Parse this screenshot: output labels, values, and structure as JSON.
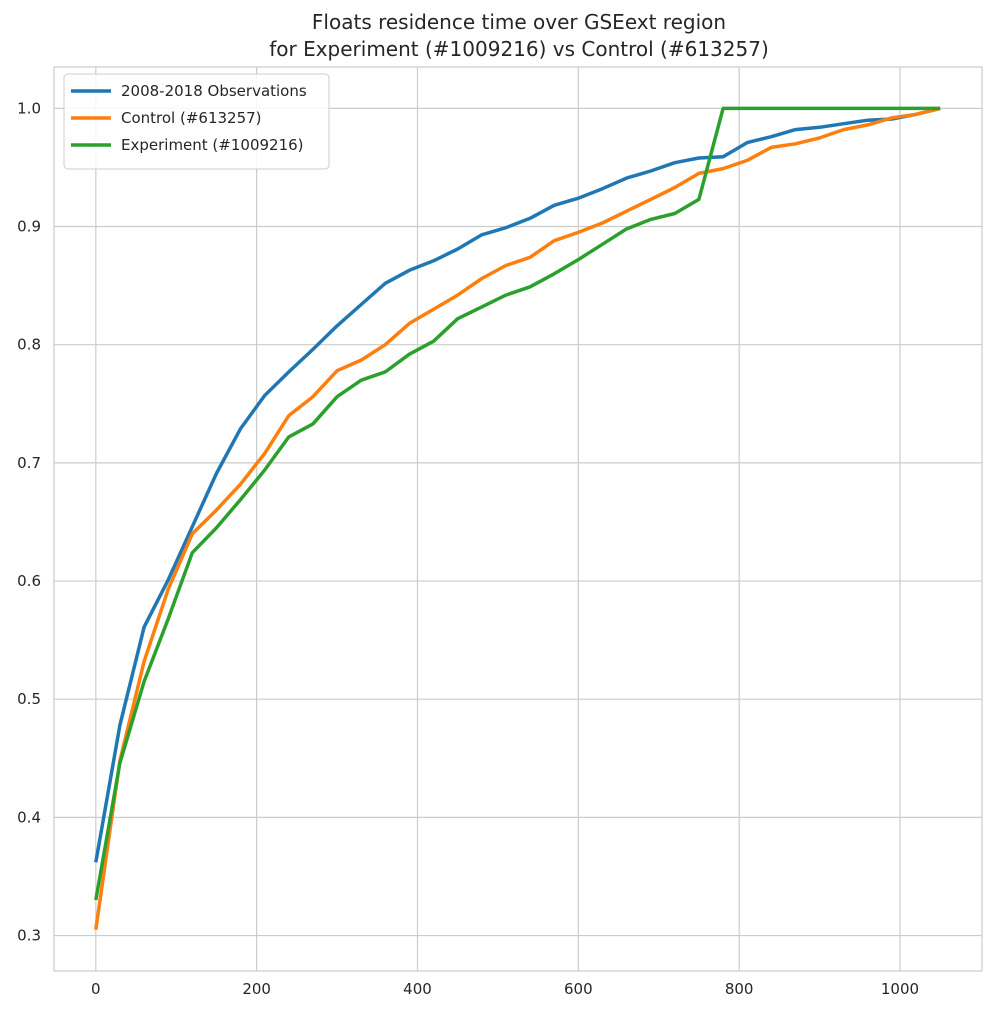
{
  "chart_data": {
    "type": "line",
    "title": "Floats residence time over GSEext region",
    "subtitle": "for Experiment (#1009216) vs Control (#613257)",
    "xlabel": "",
    "ylabel": "",
    "xlim": [
      -52,
      1102
    ],
    "ylim": [
      0.27,
      1.035
    ],
    "xticks": [
      0,
      200,
      400,
      600,
      800,
      1000
    ],
    "yticks": [
      0.3,
      0.4,
      0.5,
      0.6,
      0.7,
      0.8,
      0.9,
      1.0
    ],
    "grid": true,
    "legend_position": "upper-left",
    "series": [
      {
        "name": "2008-2018 Observations",
        "color": "#1f77b4",
        "x": [
          0,
          30,
          60,
          90,
          120,
          150,
          180,
          210,
          240,
          270,
          300,
          330,
          360,
          390,
          420,
          450,
          480,
          510,
          540,
          570,
          600,
          630,
          660,
          690,
          720,
          750,
          780,
          810,
          840,
          870,
          900,
          930,
          960,
          990,
          1020,
          1050
        ],
        "y": [
          0.362,
          0.478,
          0.561,
          0.601,
          0.646,
          0.691,
          0.729,
          0.757,
          0.777,
          0.796,
          0.816,
          0.834,
          0.852,
          0.863,
          0.871,
          0.881,
          0.893,
          0.899,
          0.907,
          0.918,
          0.924,
          0.932,
          0.941,
          0.947,
          0.954,
          0.958,
          0.959,
          0.971,
          0.976,
          0.982,
          0.984,
          0.987,
          0.99,
          0.991,
          0.995,
          1.0
        ]
      },
      {
        "name": "Control (#613257)",
        "color": "#ff7f0e",
        "x": [
          0,
          30,
          60,
          90,
          120,
          150,
          180,
          210,
          240,
          270,
          300,
          330,
          360,
          390,
          420,
          450,
          480,
          510,
          540,
          570,
          600,
          630,
          660,
          690,
          720,
          750,
          780,
          810,
          840,
          870,
          900,
          930,
          960,
          990,
          1020,
          1050
        ],
        "y": [
          0.305,
          0.448,
          0.532,
          0.593,
          0.64,
          0.66,
          0.682,
          0.708,
          0.74,
          0.756,
          0.778,
          0.787,
          0.8,
          0.818,
          0.83,
          0.842,
          0.856,
          0.867,
          0.874,
          0.888,
          0.895,
          0.903,
          0.913,
          0.923,
          0.933,
          0.945,
          0.949,
          0.956,
          0.967,
          0.97,
          0.975,
          0.982,
          0.986,
          0.992,
          0.995,
          1.0
        ]
      },
      {
        "name": "Experiment (#1009216)",
        "color": "#2ca02c",
        "x": [
          0,
          30,
          60,
          90,
          120,
          150,
          180,
          210,
          240,
          270,
          300,
          330,
          360,
          390,
          420,
          450,
          480,
          510,
          540,
          570,
          600,
          630,
          660,
          690,
          720,
          750,
          780,
          810,
          840,
          870,
          900,
          930,
          960,
          990,
          1020,
          1050
        ],
        "y": [
          0.33,
          0.446,
          0.515,
          0.568,
          0.624,
          0.645,
          0.669,
          0.694,
          0.722,
          0.733,
          0.756,
          0.77,
          0.777,
          0.792,
          0.803,
          0.822,
          0.832,
          0.842,
          0.849,
          0.86,
          0.872,
          0.885,
          0.898,
          0.906,
          0.911,
          0.923,
          1.0,
          1.0,
          1.0,
          1.0,
          1.0,
          1.0,
          1.0,
          1.0,
          1.0,
          1.0
        ]
      }
    ]
  }
}
